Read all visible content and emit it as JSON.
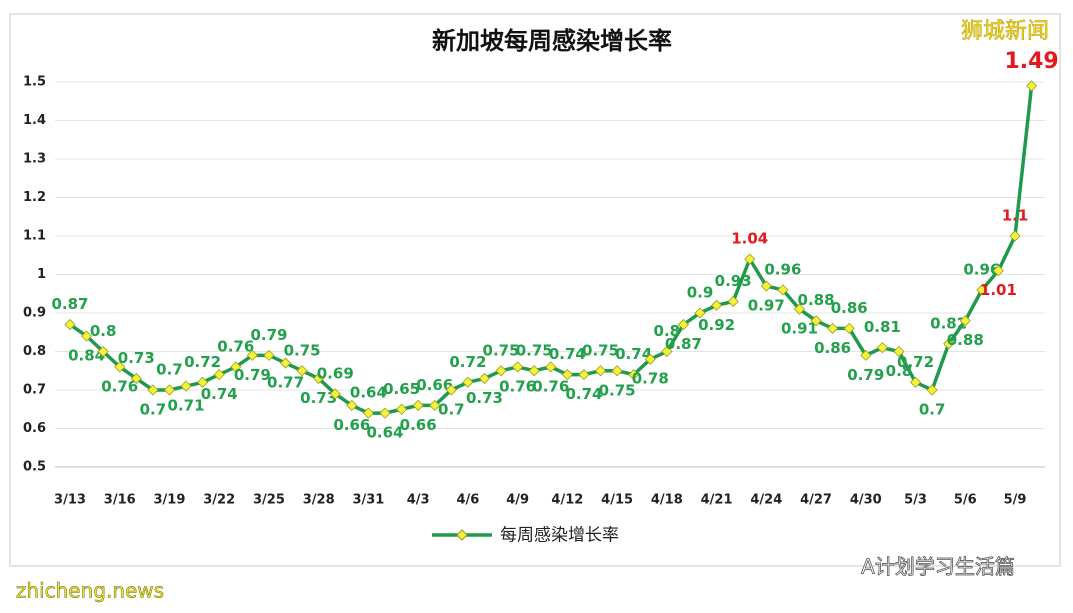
{
  "chart_data": {
    "type": "line",
    "title": "新加坡每周感染增长率",
    "categories": [
      "3/13",
      null,
      null,
      "3/16",
      null,
      null,
      "3/19",
      null,
      null,
      "3/22",
      null,
      null,
      "3/25",
      null,
      null,
      "3/28",
      null,
      null,
      "3/31",
      null,
      null,
      "4/3",
      null,
      null,
      "4/6",
      null,
      null,
      "4/9",
      null,
      null,
      "4/12",
      null,
      null,
      "4/15",
      null,
      null,
      "4/18",
      null,
      null,
      "4/21",
      null,
      null,
      "4/24",
      null,
      null,
      "4/27",
      null,
      null,
      "4/30",
      null,
      null,
      "5/3",
      null,
      null,
      "5/6",
      null,
      null,
      "5/9",
      null
    ],
    "series": [
      {
        "name": "每周感染增长率",
        "color": "#1f9a4c",
        "marker_color": "#f2f23a",
        "values": [
          0.87,
          0.84,
          0.8,
          0.76,
          0.73,
          0.7,
          0.7,
          0.71,
          0.72,
          0.74,
          0.76,
          0.79,
          0.79,
          0.77,
          0.75,
          0.73,
          0.69,
          0.66,
          0.64,
          0.64,
          0.65,
          0.66,
          0.66,
          0.7,
          0.72,
          0.73,
          0.75,
          0.76,
          0.75,
          0.76,
          0.74,
          0.74,
          0.75,
          0.75,
          0.74,
          0.78,
          0.8,
          0.87,
          0.9,
          0.92,
          0.93,
          1.04,
          0.97,
          0.96,
          0.91,
          0.88,
          0.86,
          0.86,
          0.79,
          0.81,
          0.8,
          0.72,
          0.7,
          0.82,
          0.88,
          0.96,
          1.01,
          1.1,
          1.49
        ]
      }
    ],
    "ylim": [
      0.5,
      1.5
    ],
    "yticks": [
      0.5,
      0.6,
      0.7,
      0.8,
      0.9,
      1,
      1.1,
      1.2,
      1.3,
      1.4,
      1.5
    ],
    "grid": true,
    "label_color": "#22a04b",
    "highlight_label_color": "#e3191f",
    "highlight_above": 1,
    "annotations": [
      "狮城新闻",
      "A计划学习生活篇",
      "zhicheng.news"
    ]
  }
}
